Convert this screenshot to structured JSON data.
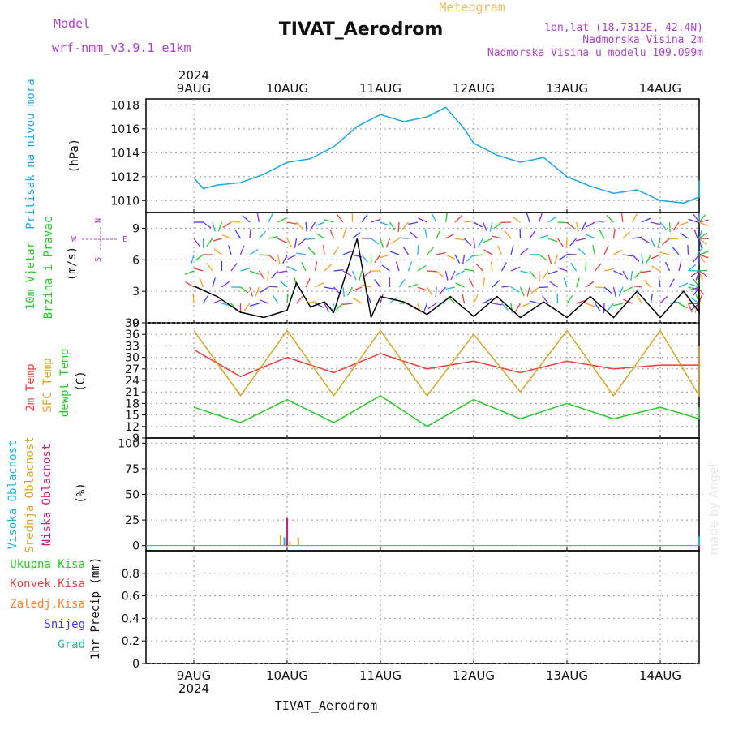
{
  "header": {
    "model_label": "Model",
    "model_name": "wrf-nmm_v3.9.1  e1km",
    "title": "TIVAT_Aerodrom",
    "subtitle": "Meteogram",
    "coords": "lon,lat (18.7312E, 42.4N)",
    "elev": "Nadmorska Visina 2m",
    "model_elev": "Nadmorska Visina u modelu 109.099m",
    "footer": "TIVAT_Aerodrom",
    "watermark": "made by Angel"
  },
  "time_axis": {
    "year": "2024",
    "labels": [
      "9AUG",
      "10AUG",
      "11AUG",
      "12AUG",
      "13AUG",
      "14AUG"
    ]
  },
  "colors": {
    "pressure": "#1aa7e6",
    "wind_speed": "#000000",
    "t2m": "#ee3b3b",
    "sfc": "#daa520",
    "dewpt": "#22cc22",
    "high_cloud": "#1ab4e6",
    "mid_cloud": "#daa520",
    "low_cloud": "#e6147a",
    "total_precip": "#22cc22",
    "conv_precip": "#ee3b3b",
    "frz_precip": "#ff7f24",
    "snow": "#3c3cff",
    "graupel": "#1abc9c",
    "model_text": "#b040d0"
  },
  "chart_data": [
    {
      "type": "line",
      "id": "pressure",
      "ylabel_lines": [
        "Pritisak na nivou mora",
        "(hPa)"
      ],
      "ylim": [
        1009,
        1018.5
      ],
      "yticks": [
        1010,
        1012,
        1014,
        1016,
        1018
      ],
      "x_days": [
        0,
        0.1,
        0.25,
        0.5,
        0.75,
        1.0,
        1.25,
        1.5,
        1.75,
        2.0,
        2.25,
        2.5,
        2.7,
        2.9,
        3.0,
        3.25,
        3.5,
        3.75,
        4.0,
        4.25,
        4.5,
        4.75,
        5.0,
        5.25,
        5.5,
        5.75,
        5.9
      ],
      "values": [
        1011.9,
        1011.0,
        1011.3,
        1011.5,
        1012.2,
        1013.2,
        1013.5,
        1014.5,
        1016.2,
        1017.2,
        1016.6,
        1017.0,
        1017.8,
        1016.0,
        1014.8,
        1013.8,
        1013.2,
        1013.6,
        1012.0,
        1011.2,
        1010.6,
        1010.9,
        1010.0,
        1009.8,
        1010.3,
        1011.4,
        1011.7
      ],
      "series": [
        {
          "name": "Pritisak na nivou mora"
        }
      ]
    },
    {
      "type": "line",
      "id": "wind",
      "ylabel_lines": [
        "10m Vjetar",
        "Brzina i Pravac",
        "(m/s)"
      ],
      "compass": {
        "n": "N",
        "s": "S",
        "e": "E",
        "w": "W"
      },
      "ylim": [
        0,
        10.5
      ],
      "yticks": [
        0,
        3,
        6,
        9
      ],
      "x_days": [
        0,
        0.25,
        0.5,
        0.75,
        1.0,
        1.1,
        1.25,
        1.4,
        1.5,
        1.75,
        1.9,
        2.0,
        2.25,
        2.5,
        2.75,
        3.0,
        3.25,
        3.5,
        3.75,
        4.0,
        4.25,
        4.5,
        4.75,
        5.0,
        5.25,
        5.5,
        5.75,
        5.9
      ],
      "values": [
        3.5,
        2.5,
        1.0,
        0.5,
        1.2,
        3.8,
        1.5,
        2.0,
        1.0,
        8.0,
        0.5,
        2.5,
        2.0,
        0.8,
        2.5,
        0.6,
        2.5,
        0.5,
        2.0,
        0.5,
        2.5,
        0.5,
        3.0,
        0.5,
        3.0,
        1.0,
        3.5,
        1.5
      ],
      "series": [
        {
          "name": "10m Vjetar Brzina i Pravac"
        }
      ]
    },
    {
      "type": "line",
      "id": "temperature",
      "ylabel_lines": [
        "2m Temp",
        "SFC Temp",
        "dewpt Temp",
        "(C)"
      ],
      "ylim": [
        9,
        39
      ],
      "yticks": [
        9,
        12,
        15,
        18,
        21,
        24,
        27,
        30,
        33,
        36,
        39
      ],
      "x_days": [
        0,
        0.5,
        1.0,
        1.5,
        2.0,
        2.5,
        3.0,
        3.5,
        4.0,
        4.5,
        5.0,
        5.5,
        5.9
      ],
      "series": [
        {
          "name": "2m Temp",
          "values": [
            32,
            25,
            30,
            26,
            31,
            27,
            29,
            26,
            29,
            27,
            28,
            28,
            30
          ]
        },
        {
          "name": "SFC Temp",
          "values": [
            37,
            20,
            37,
            20,
            37,
            20,
            36,
            21,
            37,
            20,
            37,
            20,
            33
          ]
        },
        {
          "name": "dewpt Temp",
          "values": [
            17,
            13,
            19,
            13,
            20,
            12,
            19,
            14,
            18,
            14,
            17,
            14,
            17
          ]
        }
      ]
    },
    {
      "type": "bar",
      "id": "clouds",
      "ylabel_lines": [
        "Visoka Oblacnost",
        "Srednja Oblacnost",
        "Niska Oblacnost",
        "(%)"
      ],
      "ylim": [
        -5,
        105
      ],
      "yticks": [
        0,
        25,
        50,
        75,
        100
      ],
      "bars": [
        {
          "series": "Srednja Oblacnost",
          "x_days": 0.93,
          "value": 10
        },
        {
          "series": "Visoka Oblacnost",
          "x_days": 0.97,
          "value": 8
        },
        {
          "series": "Niska Oblacnost",
          "x_days": 1.0,
          "value": 27
        },
        {
          "series": "Srednja Oblacnost",
          "x_days": 1.03,
          "value": 4
        },
        {
          "series": "Srednja Oblacnost",
          "x_days": 1.12,
          "value": 8
        },
        {
          "series": "Srednja Oblacnost",
          "x_days": 5.86,
          "value": 7
        },
        {
          "series": "Visoka Oblacnost",
          "x_days": 5.88,
          "value": 9
        }
      ],
      "series": [
        {
          "name": "Visoka Oblacnost"
        },
        {
          "name": "Srednja Oblacnost"
        },
        {
          "name": "Niska Oblacnost"
        }
      ]
    },
    {
      "type": "bar",
      "id": "precip",
      "ylabel_lines": [
        "1hr Precip (mm)"
      ],
      "legend": [
        "Ukupna Kisa",
        "Konvek.Kisa",
        "Zaledj.Kisa",
        "Snijeg",
        "Grad"
      ],
      "ylim": [
        0,
        1.0
      ],
      "yticks": [
        0,
        0.2,
        0.4,
        0.6,
        0.8
      ],
      "bars": [],
      "series": [
        {
          "name": "Ukupna Kisa"
        },
        {
          "name": "Konvek.Kisa"
        },
        {
          "name": "Zaledj.Kisa"
        },
        {
          "name": "Snijeg"
        },
        {
          "name": "Grad"
        }
      ]
    }
  ]
}
